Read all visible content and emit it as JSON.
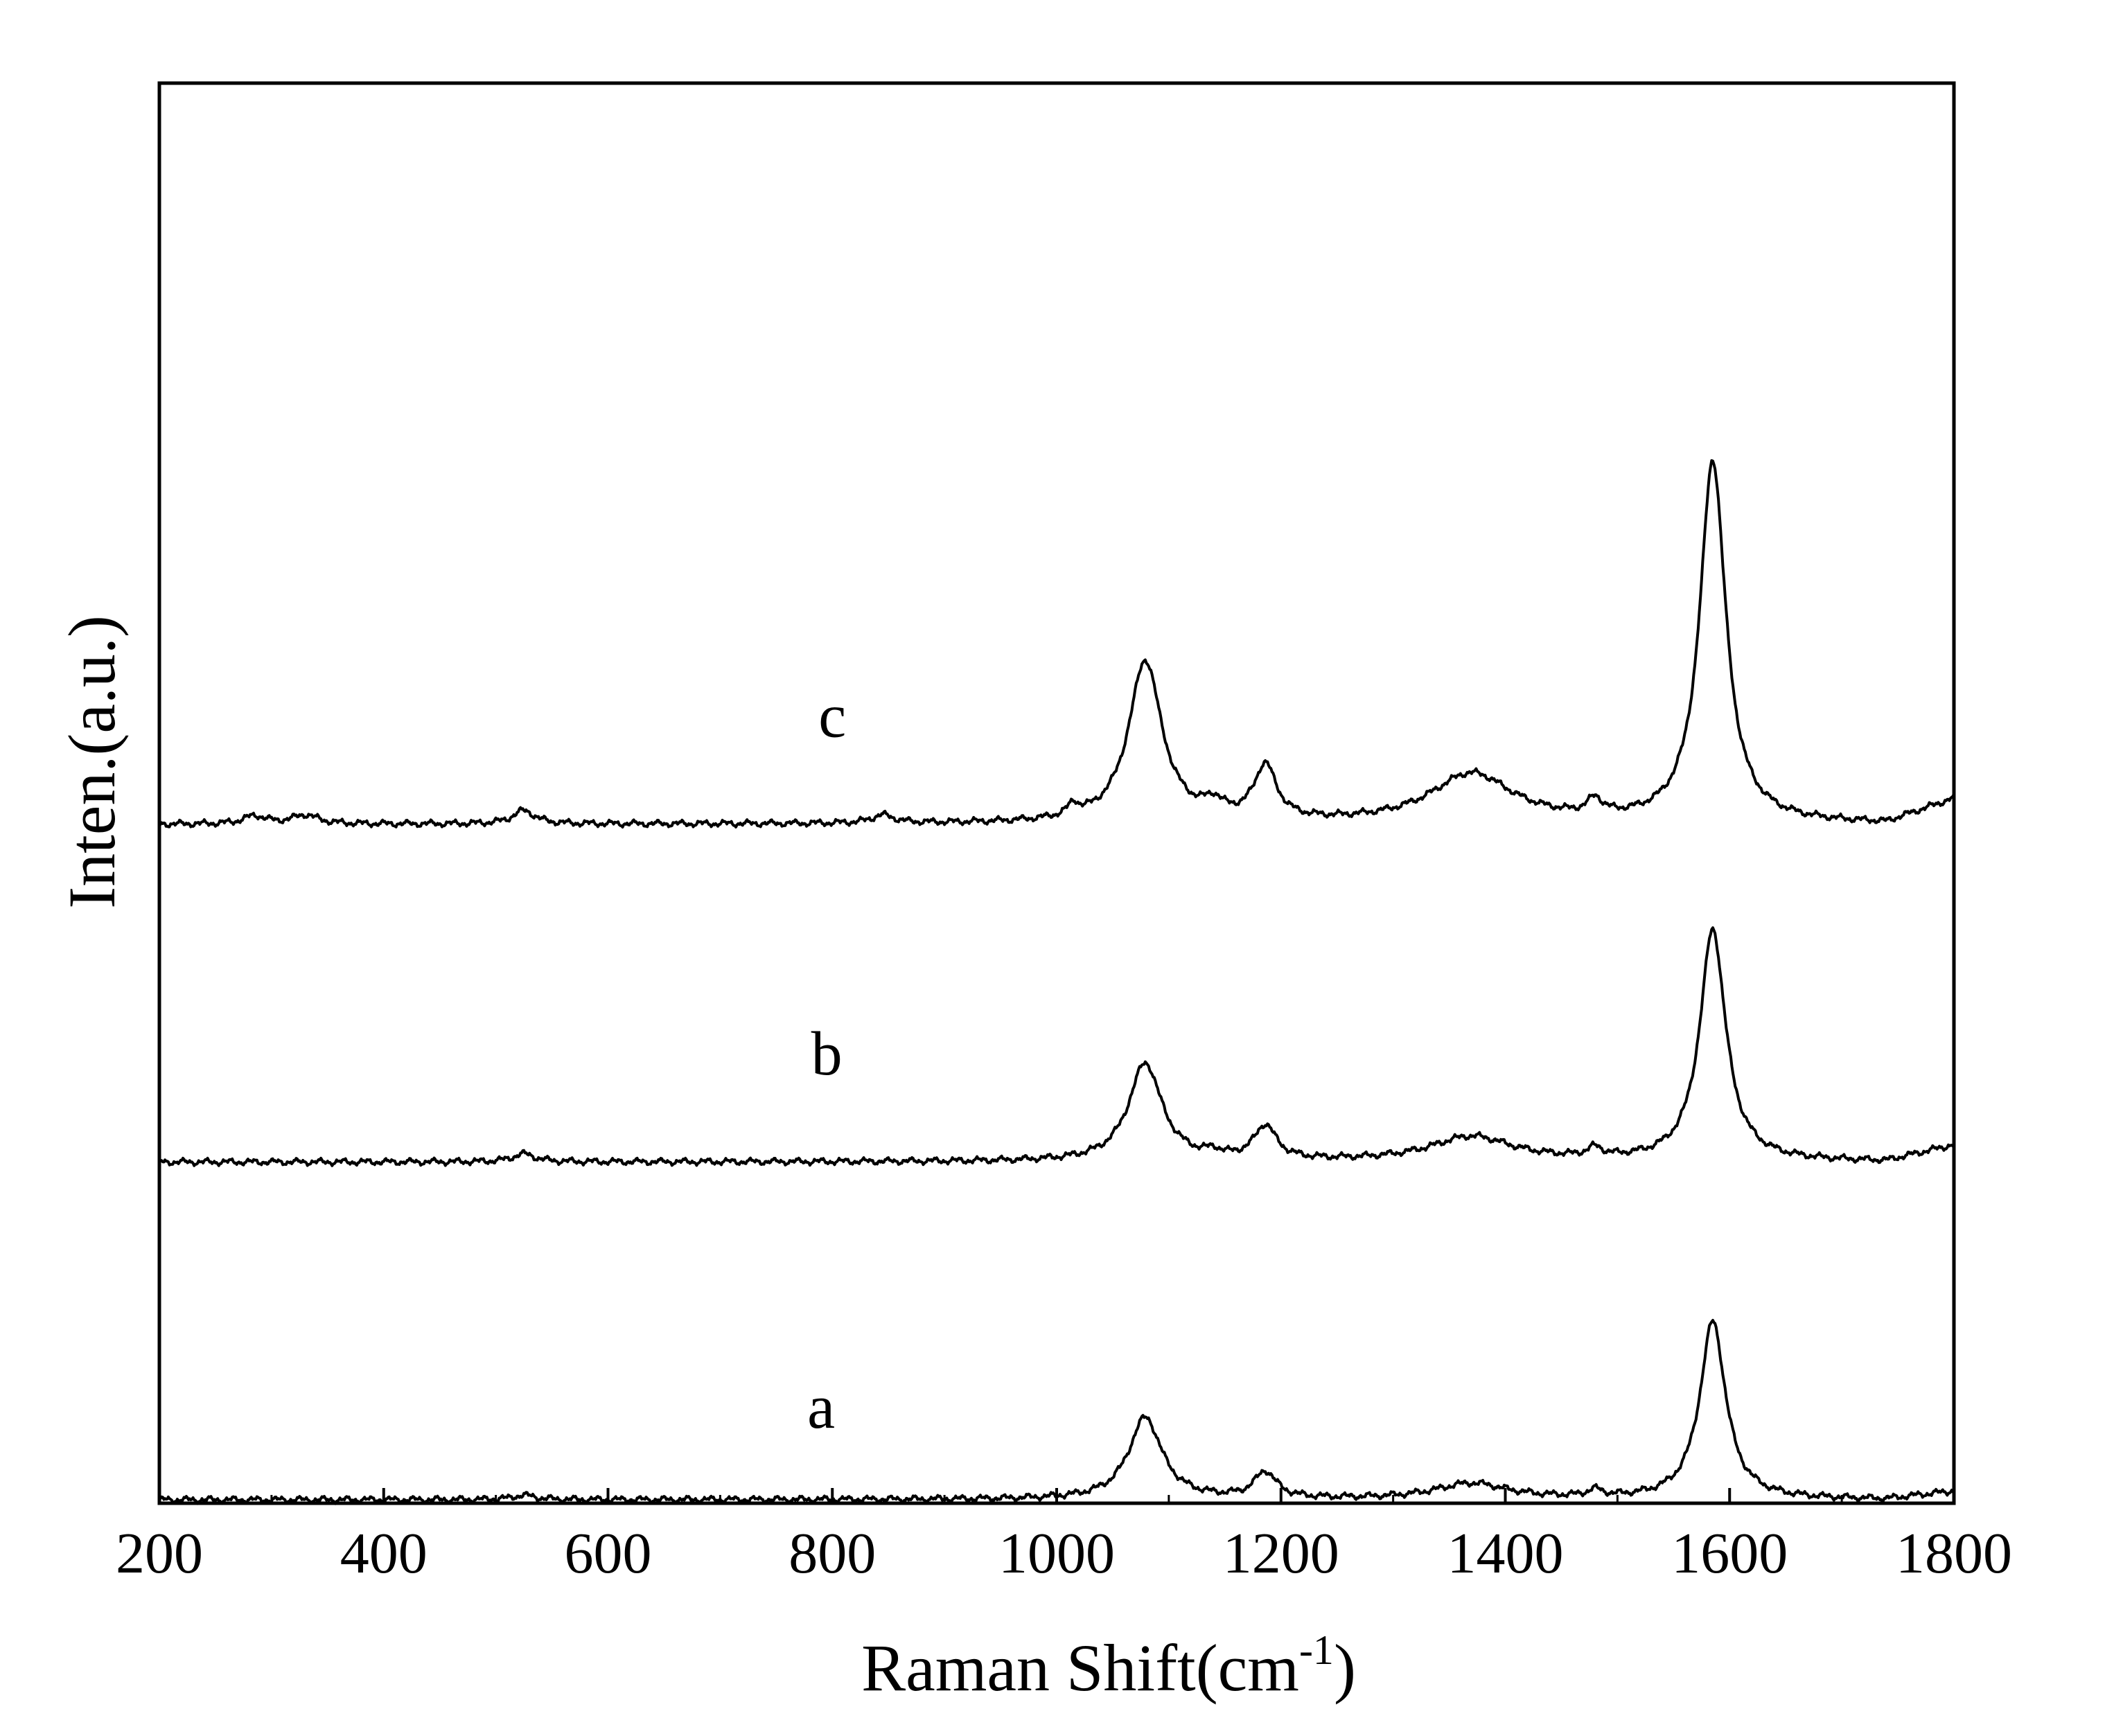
{
  "chart_data": {
    "type": "line",
    "xlabel": "Raman Shift(cm",
    "xlabel_sup": "-1",
    "xlabel_close": ")",
    "ylabel": "Inten.(a.u.)",
    "xlim": [
      200,
      1800
    ],
    "xticks": [
      200,
      400,
      600,
      800,
      1000,
      1200,
      1400,
      1600,
      1800
    ],
    "yticks_visible": false,
    "grid": false,
    "stacked_offsets": true,
    "series": [
      {
        "name": "a",
        "label_x": 790,
        "label_level": 0.16,
        "baseline": 0.0,
        "peaks": [
          {
            "x": 1079,
            "height": 0.182,
            "width": 18
          },
          {
            "x": 1186,
            "height": 0.058,
            "width": 12
          },
          {
            "x": 1370,
            "height": 0.035,
            "width": 40
          },
          {
            "x": 1585,
            "height": 0.395,
            "width": 14
          },
          {
            "x": 1480,
            "height": 0.015,
            "width": 8
          },
          {
            "x": 525,
            "height": 0.01,
            "width": 12
          }
        ]
      },
      {
        "name": "b",
        "label_x": 795,
        "label_level": 0.945,
        "baseline": 0.75,
        "peaks": [
          {
            "x": 1079,
            "height": 0.218,
            "width": 18
          },
          {
            "x": 1186,
            "height": 0.075,
            "width": 12
          },
          {
            "x": 1370,
            "height": 0.055,
            "width": 45
          },
          {
            "x": 1585,
            "height": 0.515,
            "width": 14
          },
          {
            "x": 1480,
            "height": 0.02,
            "width": 8
          },
          {
            "x": 525,
            "height": 0.018,
            "width": 12
          },
          {
            "x": 1140,
            "height": 0.012,
            "width": 8
          }
        ]
      },
      {
        "name": "c",
        "label_x": 800,
        "label_level": 1.695,
        "baseline": 1.5,
        "peaks": [
          {
            "x": 1079,
            "height": 0.36,
            "width": 18
          },
          {
            "x": 1186,
            "height": 0.12,
            "width": 12
          },
          {
            "x": 1370,
            "height": 0.11,
            "width": 45
          },
          {
            "x": 1585,
            "height": 0.805,
            "width": 14
          },
          {
            "x": 1480,
            "height": 0.035,
            "width": 8
          },
          {
            "x": 525,
            "height": 0.03,
            "width": 12
          },
          {
            "x": 1140,
            "height": 0.03,
            "width": 10
          },
          {
            "x": 1015,
            "height": 0.025,
            "width": 6
          },
          {
            "x": 330,
            "height": 0.02,
            "width": 14
          },
          {
            "x": 285,
            "height": 0.018,
            "width": 12
          },
          {
            "x": 845,
            "height": 0.018,
            "width": 12
          }
        ]
      }
    ]
  }
}
